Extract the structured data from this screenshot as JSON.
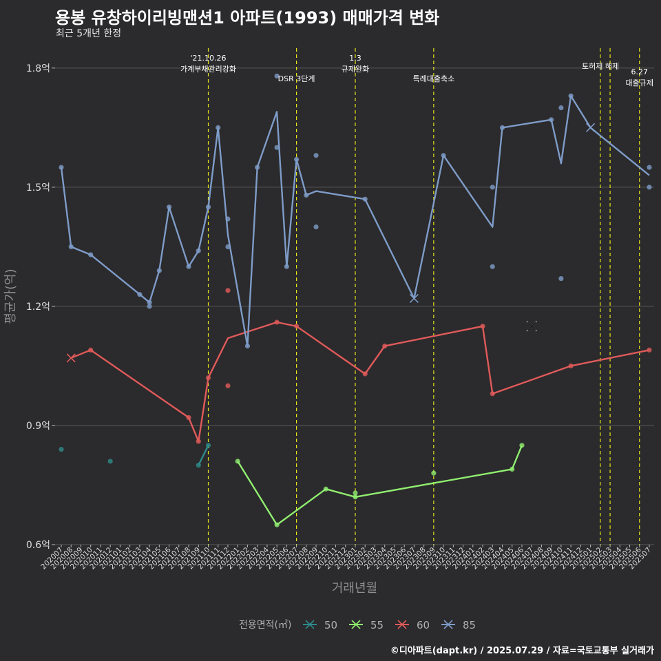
{
  "title": "용봉 유창하이리빙맨션1 아파트(1993) 매매가격 변화",
  "subtitle": "최근 5개년 한정",
  "caption": "©디아파트(dapt.kr) / 2025.07.29 / 자료=국토교통부 실거래가",
  "colors": {
    "background": "#2b2a2c",
    "grid": "#595959",
    "event_line": "#e6e619",
    "s50": "#2e8b8b",
    "s55": "#90ee70",
    "s60": "#e05a5a",
    "s85": "#7e9cc8"
  },
  "chart_data": {
    "type": "line",
    "xlabel": "거래년월",
    "ylabel": "평균가(억)",
    "ylim": [
      0.6,
      1.85
    ],
    "yticks": [
      0.6,
      0.9,
      1.2,
      1.5,
      1.8
    ],
    "ytick_labels": [
      "0.6억",
      "0.9억",
      "1.2억",
      "1.5억",
      "1.8억"
    ],
    "grid": true,
    "legend_title": "전용면적(㎡)",
    "legend_position": "bottom",
    "x_months": [
      "202007",
      "202008",
      "202009",
      "202010",
      "202011",
      "202012",
      "202101",
      "202102",
      "202103",
      "202104",
      "202105",
      "202106",
      "202107",
      "202108",
      "202109",
      "202110",
      "202111",
      "202112",
      "202201",
      "202202",
      "202203",
      "202204",
      "202205",
      "202206",
      "202207",
      "202208",
      "202209",
      "202210",
      "202211",
      "202212",
      "202301",
      "202302",
      "202303",
      "202304",
      "202305",
      "202306",
      "202307",
      "202308",
      "202309",
      "202310",
      "202311",
      "202312",
      "202401",
      "202402",
      "202403",
      "202404",
      "202405",
      "202406",
      "202407",
      "202408",
      "202409",
      "202410",
      "202411",
      "202412",
      "202501",
      "202502",
      "202503",
      "202504",
      "202505",
      "202506",
      "202507"
    ],
    "events": [
      {
        "x": 15,
        "label": "'21.10.26\n가계부채관리강화"
      },
      {
        "x": 24,
        "label": "DSR 3단계"
      },
      {
        "x": 30,
        "label": "1.3\n규제완화"
      },
      {
        "x": 38,
        "label": "특례대출축소"
      },
      {
        "x": 55,
        "label": ""
      },
      {
        "x": 56,
        "label": "토허제 해제"
      },
      {
        "x": 59,
        "label": "6.27\n대출규제"
      }
    ],
    "series": [
      {
        "name": "50",
        "color": "#2e8b8b",
        "line": [
          [
            14,
            0.8
          ],
          [
            15,
            0.85
          ]
        ],
        "points": [
          [
            0,
            0.84
          ],
          [
            5,
            0.81
          ],
          [
            14,
            0.8
          ],
          [
            15,
            0.85
          ]
        ],
        "crosses": []
      },
      {
        "name": "55",
        "color": "#90ee70",
        "line": [
          [
            18,
            0.81
          ],
          [
            22,
            0.65
          ],
          [
            27,
            0.74
          ],
          [
            30,
            0.72
          ],
          [
            46,
            0.79
          ],
          [
            47,
            0.85
          ]
        ],
        "points": [
          [
            18,
            0.81
          ],
          [
            22,
            0.65
          ],
          [
            27,
            0.74
          ],
          [
            30,
            0.73
          ],
          [
            30,
            0.72
          ],
          [
            38,
            0.78
          ],
          [
            46,
            0.79
          ],
          [
            47,
            0.85
          ]
        ],
        "crosses": []
      },
      {
        "name": "60",
        "color": "#e05a5a",
        "line": [
          [
            1,
            1.07
          ],
          [
            3,
            1.09
          ],
          [
            13,
            0.92
          ],
          [
            14,
            0.86
          ],
          [
            15,
            1.02
          ],
          [
            17,
            1.12
          ],
          [
            22,
            1.16
          ],
          [
            24,
            1.15
          ],
          [
            31,
            1.03
          ],
          [
            33,
            1.1
          ],
          [
            43,
            1.15
          ],
          [
            44,
            0.98
          ],
          [
            52,
            1.05
          ],
          [
            60,
            1.09
          ]
        ],
        "points": [
          [
            3,
            1.09
          ],
          [
            13,
            0.92
          ],
          [
            14,
            0.86
          ],
          [
            15,
            1.02
          ],
          [
            17,
            1.24
          ],
          [
            17,
            1.0
          ],
          [
            22,
            1.16
          ],
          [
            24,
            1.15
          ],
          [
            31,
            1.03
          ],
          [
            33,
            1.1
          ],
          [
            43,
            1.15
          ],
          [
            44,
            0.98
          ],
          [
            52,
            1.05
          ],
          [
            60,
            1.09
          ]
        ],
        "crosses": [
          [
            1,
            1.07
          ]
        ]
      },
      {
        "name": "85",
        "color": "#7e9cc8",
        "line": [
          [
            0,
            1.55
          ],
          [
            1,
            1.35
          ],
          [
            3,
            1.33
          ],
          [
            8,
            1.23
          ],
          [
            9,
            1.21
          ],
          [
            10,
            1.29
          ],
          [
            11,
            1.45
          ],
          [
            13,
            1.3
          ],
          [
            14,
            1.34
          ],
          [
            15,
            1.45
          ],
          [
            16,
            1.65
          ],
          [
            17,
            1.38
          ],
          [
            19,
            1.1
          ],
          [
            20,
            1.55
          ],
          [
            22,
            1.69
          ],
          [
            23,
            1.3
          ],
          [
            24,
            1.57
          ],
          [
            25,
            1.48
          ],
          [
            26,
            1.49
          ],
          [
            31,
            1.47
          ],
          [
            36,
            1.22
          ],
          [
            39,
            1.58
          ],
          [
            44,
            1.4
          ],
          [
            45,
            1.65
          ],
          [
            50,
            1.67
          ],
          [
            51,
            1.56
          ],
          [
            52,
            1.73
          ],
          [
            54,
            1.65
          ],
          [
            60,
            1.53
          ]
        ],
        "points": [
          [
            0,
            1.55
          ],
          [
            1,
            1.35
          ],
          [
            3,
            1.33
          ],
          [
            8,
            1.23
          ],
          [
            9,
            1.2
          ],
          [
            9,
            1.21
          ],
          [
            10,
            1.29
          ],
          [
            11,
            1.45
          ],
          [
            13,
            1.3
          ],
          [
            14,
            1.34
          ],
          [
            15,
            1.45
          ],
          [
            16,
            1.65
          ],
          [
            17,
            1.42
          ],
          [
            17,
            1.35
          ],
          [
            19,
            1.1
          ],
          [
            20,
            1.55
          ],
          [
            22,
            1.78
          ],
          [
            22,
            1.6
          ],
          [
            23,
            1.3
          ],
          [
            24,
            1.57
          ],
          [
            25,
            1.48
          ],
          [
            26,
            1.58
          ],
          [
            26,
            1.4
          ],
          [
            31,
            1.47
          ],
          [
            39,
            1.58
          ],
          [
            44,
            1.5
          ],
          [
            44,
            1.3
          ],
          [
            45,
            1.65
          ],
          [
            50,
            1.67
          ],
          [
            51,
            1.7
          ],
          [
            51,
            1.27
          ],
          [
            52,
            1.73
          ],
          [
            60,
            1.55
          ],
          [
            60,
            1.5
          ]
        ],
        "crosses": [
          [
            36,
            1.22
          ],
          [
            54,
            1.65
          ]
        ]
      }
    ],
    "extra_crosses": [
      {
        "x": 48,
        "y": 1.15,
        "color": "#1a1a1a"
      }
    ]
  }
}
